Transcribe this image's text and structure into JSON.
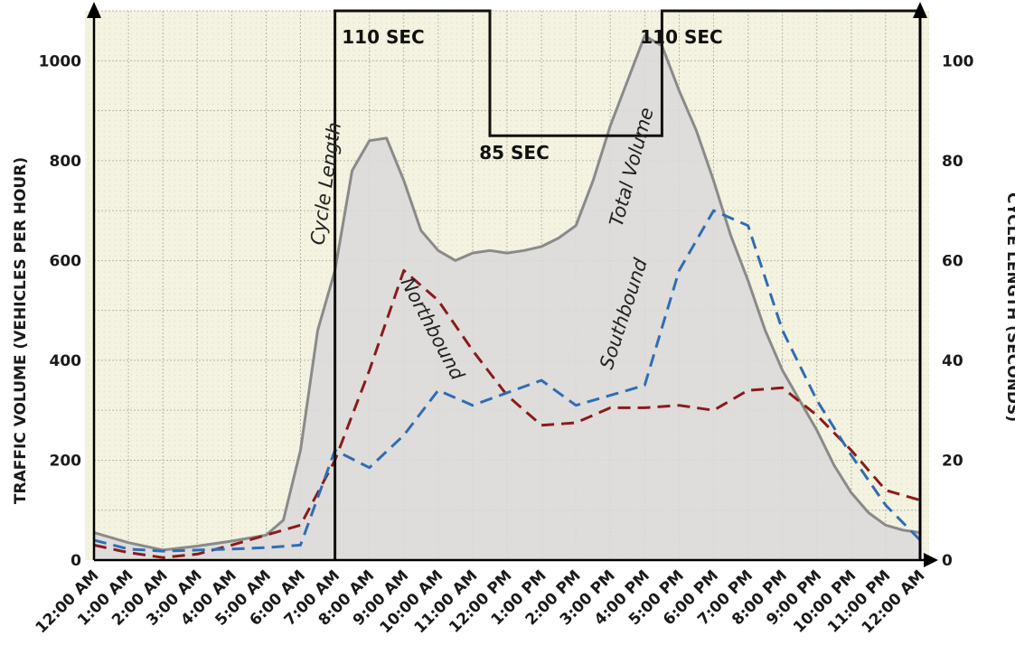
{
  "chart_data": {
    "type": "line",
    "xlabel": "",
    "ylabel": "TRAFFIC VOLUME (VEHICLES PER HOUR)",
    "y2label": "CYCLE LENGTH (SECONDS)",
    "categories": [
      "12:00 AM",
      "1:00 AM",
      "2:00 AM",
      "3:00 AM",
      "4:00 AM",
      "5:00 AM",
      "6:00 AM",
      "7:00 AM",
      "8:00 AM",
      "9:00 AM",
      "10:00 AM",
      "11:00 AM",
      "12:00 PM",
      "1:00 PM",
      "2:00 PM",
      "3:00 PM",
      "4:00 PM",
      "5:00 PM",
      "6:00 PM",
      "7:00 PM",
      "8:00 PM",
      "9:00 PM",
      "10:00 PM",
      "11:00 PM",
      "12:00 AM"
    ],
    "ylim": [
      0,
      1100
    ],
    "y2lim": [
      0,
      110
    ],
    "yticks": [
      0,
      200,
      400,
      600,
      800,
      1000
    ],
    "y2ticks": [
      0,
      20,
      40,
      60,
      80,
      100
    ],
    "grid": true,
    "series": [
      {
        "name": "Total Volume",
        "role": "total",
        "color": "#8a8a8a",
        "fill": "#d9d9d9",
        "x": [
          0,
          1,
          2,
          3,
          4,
          5,
          5.5,
          6,
          6.5,
          7,
          7.5,
          8,
          8.5,
          9,
          9.5,
          10,
          10.5,
          11,
          11.5,
          12,
          12.5,
          13,
          13.5,
          14,
          14.5,
          15,
          15.5,
          16,
          16.5,
          17,
          17.5,
          18,
          18.5,
          19,
          19.5,
          20,
          20.5,
          21,
          21.5,
          22,
          22.5,
          23,
          23.5,
          24
        ],
        "values": [
          55,
          35,
          20,
          28,
          38,
          50,
          80,
          220,
          460,
          580,
          780,
          840,
          845,
          760,
          660,
          620,
          600,
          615,
          620,
          615,
          620,
          628,
          645,
          670,
          760,
          870,
          960,
          1050,
          1030,
          940,
          860,
          760,
          650,
          560,
          460,
          380,
          320,
          260,
          190,
          135,
          95,
          70,
          60,
          55
        ]
      },
      {
        "name": "Northbound",
        "role": "northbound",
        "color": "#8b1a1a",
        "x": [
          0,
          1,
          2,
          3,
          4,
          5,
          6,
          7,
          8,
          9,
          10,
          11,
          12,
          13,
          14,
          15,
          16,
          17,
          18,
          19,
          20,
          21,
          22,
          23,
          24
        ],
        "values": [
          30,
          15,
          5,
          12,
          30,
          50,
          70,
          200,
          380,
          580,
          520,
          420,
          330,
          270,
          275,
          305,
          305,
          310,
          300,
          340,
          345,
          290,
          220,
          140,
          120
        ]
      },
      {
        "name": "Southbound",
        "role": "southbound",
        "color": "#2e6db4",
        "x": [
          0,
          1,
          2,
          3,
          4,
          5,
          6,
          7,
          8,
          9,
          10,
          11,
          12,
          13,
          14,
          15,
          16,
          17,
          18,
          19,
          20,
          21,
          22,
          23,
          24
        ],
        "values": [
          40,
          22,
          18,
          20,
          22,
          25,
          30,
          220,
          185,
          250,
          340,
          310,
          335,
          360,
          310,
          330,
          350,
          580,
          700,
          670,
          460,
          320,
          210,
          110,
          40
        ]
      }
    ],
    "cycle_length": {
      "name": "Cycle Length",
      "axis": "y2",
      "color": "#111111",
      "x": [
        7,
        7,
        11.5,
        11.5,
        16.5,
        16.5,
        24,
        24
      ],
      "values": [
        0,
        110,
        110,
        85,
        85,
        110,
        110,
        0
      ],
      "labels": [
        "110 SEC",
        "85 SEC",
        "110 SEC"
      ]
    },
    "annotations": [
      "Cycle Length",
      "Total Volume",
      "Northbound",
      "Southbound"
    ]
  }
}
